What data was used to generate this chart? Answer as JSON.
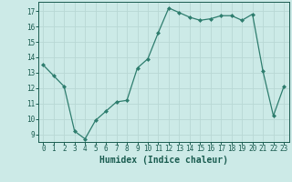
{
  "x": [
    0,
    1,
    2,
    3,
    4,
    5,
    6,
    7,
    8,
    9,
    10,
    11,
    12,
    13,
    14,
    15,
    16,
    17,
    18,
    19,
    20,
    21,
    22,
    23
  ],
  "y": [
    13.5,
    12.8,
    12.1,
    9.2,
    8.7,
    9.9,
    10.5,
    11.1,
    11.2,
    13.3,
    13.9,
    15.6,
    17.2,
    16.9,
    16.6,
    16.4,
    16.5,
    16.7,
    16.7,
    16.4,
    16.8,
    13.1,
    10.2,
    12.1
  ],
  "line_color": "#2e7d6e",
  "marker": "D",
  "marker_size": 2.0,
  "bg_color": "#cceae7",
  "grid_color": "#b8d8d4",
  "xlabel": "Humidex (Indice chaleur)",
  "ylim": [
    8.5,
    17.6
  ],
  "xlim": [
    -0.5,
    23.5
  ],
  "yticks": [
    9,
    10,
    11,
    12,
    13,
    14,
    15,
    16,
    17
  ],
  "xticks": [
    0,
    1,
    2,
    3,
    4,
    5,
    6,
    7,
    8,
    9,
    10,
    11,
    12,
    13,
    14,
    15,
    16,
    17,
    18,
    19,
    20,
    21,
    22,
    23
  ],
  "tick_label_fontsize": 5.5,
  "xlabel_fontsize": 7.0,
  "label_color": "#1a5c50",
  "linewidth": 0.9
}
